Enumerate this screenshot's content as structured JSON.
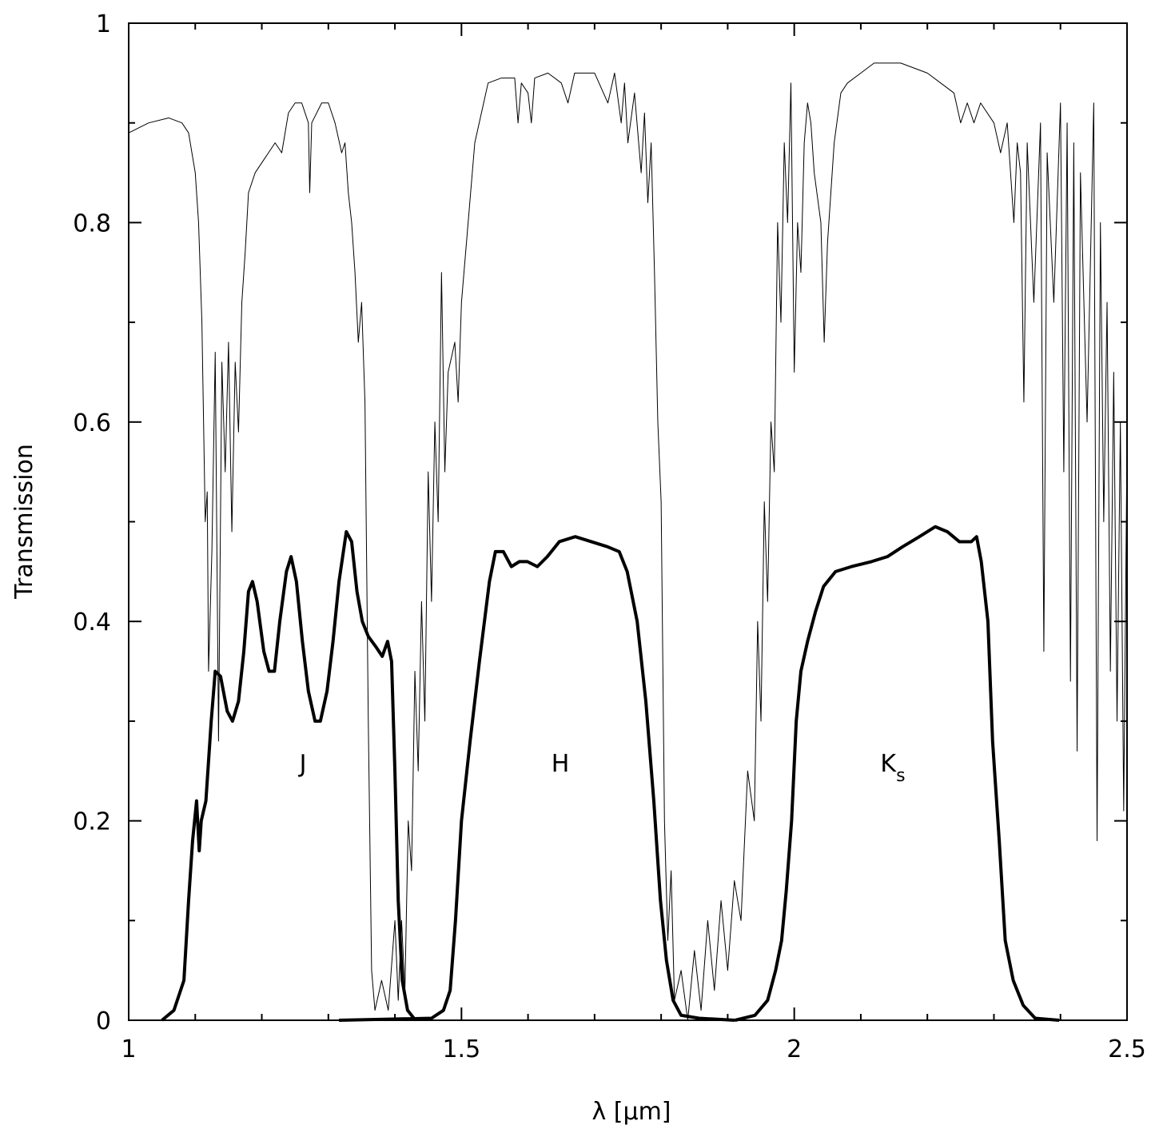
{
  "chart_data": {
    "type": "line",
    "xlabel": "λ  [μm]",
    "ylabel": "Transmission",
    "xlim": [
      1,
      2.5
    ],
    "ylim": [
      0,
      1
    ],
    "xticks": [
      1,
      1.5,
      2,
      2.5
    ],
    "yticks": [
      0,
      0.2,
      0.4,
      0.6,
      0.8,
      1
    ],
    "xminor_ticks": [
      1.1,
      1.2,
      1.3,
      1.4,
      1.6,
      1.7,
      1.8,
      1.9,
      2.1,
      2.2,
      2.3,
      2.4
    ],
    "yminor_ticks": [
      0.1,
      0.3,
      0.5,
      0.7,
      0.9
    ],
    "series": [
      {
        "color": "#000000",
        "linewidth": 1,
        "x": [
          1.0,
          1.03,
          1.06,
          1.08,
          1.09,
          1.1,
          1.105,
          1.11,
          1.115,
          1.118,
          1.12,
          1.125,
          1.13,
          1.135,
          1.14,
          1.145,
          1.15,
          1.155,
          1.16,
          1.165,
          1.17,
          1.175,
          1.18,
          1.19,
          1.2,
          1.21,
          1.22,
          1.23,
          1.24,
          1.25,
          1.26,
          1.27,
          1.272,
          1.275,
          1.29,
          1.3,
          1.31,
          1.32,
          1.325,
          1.33,
          1.335,
          1.34,
          1.345,
          1.35,
          1.355,
          1.36,
          1.365,
          1.37,
          1.38,
          1.39,
          1.4,
          1.405,
          1.41,
          1.415,
          1.42,
          1.425,
          1.43,
          1.435,
          1.44,
          1.445,
          1.45,
          1.455,
          1.46,
          1.465,
          1.47,
          1.475,
          1.48,
          1.49,
          1.495,
          1.5,
          1.51,
          1.52,
          1.53,
          1.54,
          1.56,
          1.58,
          1.585,
          1.59,
          1.6,
          1.605,
          1.61,
          1.63,
          1.65,
          1.66,
          1.67,
          1.7,
          1.72,
          1.73,
          1.74,
          1.745,
          1.75,
          1.76,
          1.77,
          1.775,
          1.78,
          1.785,
          1.79,
          1.795,
          1.8,
          1.805,
          1.81,
          1.815,
          1.82,
          1.83,
          1.84,
          1.85,
          1.86,
          1.87,
          1.88,
          1.89,
          1.9,
          1.91,
          1.92,
          1.93,
          1.94,
          1.945,
          1.95,
          1.955,
          1.96,
          1.965,
          1.97,
          1.975,
          1.98,
          1.985,
          1.99,
          1.995,
          2.0,
          2.005,
          2.01,
          2.015,
          2.02,
          2.025,
          2.03,
          2.04,
          2.045,
          2.05,
          2.06,
          2.07,
          2.08,
          2.1,
          2.12,
          2.14,
          2.16,
          2.18,
          2.2,
          2.22,
          2.24,
          2.25,
          2.26,
          2.27,
          2.28,
          2.3,
          2.31,
          2.32,
          2.33,
          2.335,
          2.34,
          2.345,
          2.35,
          2.36,
          2.37,
          2.375,
          2.38,
          2.39,
          2.4,
          2.405,
          2.41,
          2.415,
          2.42,
          2.425,
          2.43,
          2.44,
          2.45,
          2.455,
          2.46,
          2.465,
          2.47,
          2.475,
          2.48,
          2.485,
          2.49,
          2.495,
          2.5
        ],
        "values": [
          0.89,
          0.9,
          0.905,
          0.9,
          0.89,
          0.85,
          0.8,
          0.7,
          0.5,
          0.53,
          0.35,
          0.47,
          0.67,
          0.28,
          0.66,
          0.55,
          0.68,
          0.49,
          0.66,
          0.59,
          0.72,
          0.77,
          0.83,
          0.85,
          0.86,
          0.87,
          0.88,
          0.87,
          0.91,
          0.92,
          0.92,
          0.9,
          0.83,
          0.9,
          0.92,
          0.92,
          0.9,
          0.87,
          0.88,
          0.83,
          0.8,
          0.75,
          0.68,
          0.72,
          0.62,
          0.3,
          0.05,
          0.01,
          0.04,
          0.01,
          0.1,
          0.02,
          0.1,
          0.03,
          0.2,
          0.15,
          0.35,
          0.25,
          0.42,
          0.3,
          0.55,
          0.42,
          0.6,
          0.5,
          0.75,
          0.55,
          0.65,
          0.68,
          0.62,
          0.72,
          0.8,
          0.88,
          0.91,
          0.94,
          0.945,
          0.945,
          0.9,
          0.94,
          0.93,
          0.9,
          0.945,
          0.95,
          0.94,
          0.92,
          0.95,
          0.95,
          0.92,
          0.95,
          0.9,
          0.94,
          0.88,
          0.93,
          0.85,
          0.91,
          0.82,
          0.88,
          0.75,
          0.6,
          0.52,
          0.2,
          0.08,
          0.15,
          0.02,
          0.05,
          0.0,
          0.07,
          0.01,
          0.1,
          0.03,
          0.12,
          0.05,
          0.14,
          0.1,
          0.25,
          0.2,
          0.4,
          0.3,
          0.52,
          0.42,
          0.6,
          0.55,
          0.8,
          0.7,
          0.88,
          0.8,
          0.94,
          0.65,
          0.8,
          0.75,
          0.88,
          0.92,
          0.9,
          0.85,
          0.8,
          0.68,
          0.78,
          0.88,
          0.93,
          0.94,
          0.95,
          0.96,
          0.96,
          0.96,
          0.955,
          0.95,
          0.94,
          0.93,
          0.9,
          0.92,
          0.9,
          0.92,
          0.9,
          0.87,
          0.9,
          0.8,
          0.88,
          0.85,
          0.62,
          0.88,
          0.72,
          0.9,
          0.37,
          0.87,
          0.72,
          0.92,
          0.55,
          0.9,
          0.34,
          0.88,
          0.27,
          0.85,
          0.6,
          0.92,
          0.18,
          0.8,
          0.5,
          0.72,
          0.35,
          0.65,
          0.3,
          0.6,
          0.21,
          0.58
        ]
      },
      {
        "name": "J",
        "color": "#000000",
        "linewidth": 4,
        "x": [
          1.05,
          1.068,
          1.083,
          1.09,
          1.096,
          1.102,
          1.106,
          1.109,
          1.116,
          1.124,
          1.13,
          1.138,
          1.148,
          1.156,
          1.165,
          1.173,
          1.18,
          1.186,
          1.193,
          1.203,
          1.211,
          1.219,
          1.227,
          1.237,
          1.244,
          1.252,
          1.261,
          1.27,
          1.28,
          1.288,
          1.298,
          1.307,
          1.316,
          1.327,
          1.335,
          1.343,
          1.351,
          1.36,
          1.371,
          1.381,
          1.389,
          1.395,
          1.4,
          1.405,
          1.411,
          1.419,
          1.431
        ],
        "values": [
          0,
          0.01,
          0.04,
          0.12,
          0.18,
          0.22,
          0.17,
          0.2,
          0.22,
          0.3,
          0.35,
          0.345,
          0.31,
          0.3,
          0.32,
          0.37,
          0.43,
          0.44,
          0.42,
          0.37,
          0.35,
          0.35,
          0.4,
          0.45,
          0.465,
          0.44,
          0.38,
          0.33,
          0.3,
          0.3,
          0.33,
          0.38,
          0.44,
          0.49,
          0.48,
          0.43,
          0.4,
          0.385,
          0.375,
          0.365,
          0.38,
          0.36,
          0.25,
          0.12,
          0.04,
          0.01,
          0
        ]
      },
      {
        "name": "H",
        "color": "#000000",
        "linewidth": 4,
        "x": [
          1.316,
          1.455,
          1.473,
          1.483,
          1.491,
          1.5,
          1.513,
          1.527,
          1.542,
          1.551,
          1.563,
          1.575,
          1.587,
          1.599,
          1.614,
          1.629,
          1.647,
          1.671,
          1.695,
          1.719,
          1.737,
          1.749,
          1.764,
          1.777,
          1.789,
          1.799,
          1.808,
          1.818,
          1.83,
          1.857,
          1.911
        ],
        "values": [
          0,
          0.002,
          0.01,
          0.03,
          0.1,
          0.2,
          0.28,
          0.36,
          0.44,
          0.47,
          0.47,
          0.455,
          0.46,
          0.46,
          0.455,
          0.465,
          0.48,
          0.485,
          0.48,
          0.475,
          0.47,
          0.45,
          0.4,
          0.32,
          0.22,
          0.12,
          0.06,
          0.02,
          0.005,
          0.002,
          0
        ]
      },
      {
        "name": "Ks",
        "color": "#000000",
        "linewidth": 4,
        "x": [
          1.911,
          1.941,
          1.96,
          1.972,
          1.981,
          1.988,
          1.996,
          2.003,
          2.01,
          2.02,
          2.032,
          2.044,
          2.062,
          2.086,
          2.116,
          2.14,
          2.163,
          2.188,
          2.212,
          2.23,
          2.248,
          2.266,
          2.274,
          2.281,
          2.291,
          2.298,
          2.308,
          2.317,
          2.329,
          2.344,
          2.362,
          2.398
        ],
        "values": [
          0,
          0.005,
          0.02,
          0.05,
          0.08,
          0.13,
          0.2,
          0.3,
          0.35,
          0.38,
          0.41,
          0.435,
          0.45,
          0.455,
          0.46,
          0.465,
          0.475,
          0.485,
          0.495,
          0.49,
          0.48,
          0.48,
          0.485,
          0.46,
          0.4,
          0.28,
          0.18,
          0.08,
          0.04,
          0.015,
          0.002,
          0
        ]
      }
    ]
  }
}
